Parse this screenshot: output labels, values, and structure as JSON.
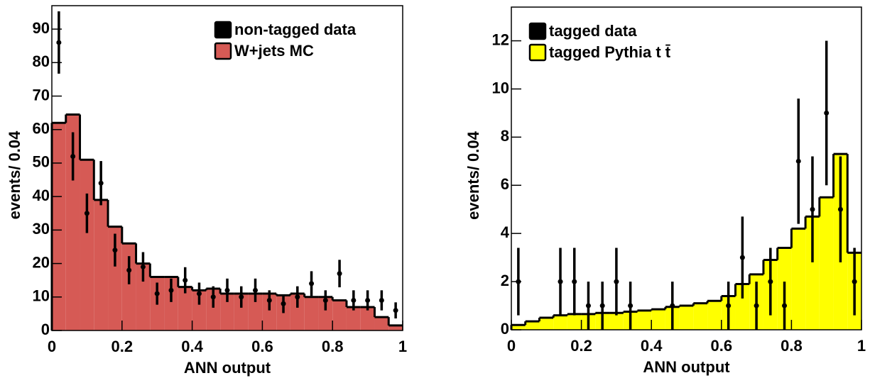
{
  "chart_data": [
    {
      "type": "histogram",
      "xlabel": "ANN output",
      "ylabel": "events/ 0.04",
      "legend": "upper right",
      "xlim": [
        0,
        1
      ],
      "ylim": [
        0,
        97
      ],
      "xticks": [
        0,
        0.2,
        0.4,
        0.6,
        0.8,
        1
      ],
      "yticks": [
        0,
        10,
        20,
        30,
        40,
        50,
        60,
        70,
        80,
        90
      ],
      "bins": [
        0,
        0.04,
        0.08,
        0.12,
        0.16,
        0.2,
        0.24,
        0.28,
        0.32,
        0.36,
        0.4,
        0.44,
        0.48,
        0.52,
        0.56,
        0.6,
        0.64,
        0.68,
        0.72,
        0.76,
        0.8,
        0.84,
        0.88,
        0.92,
        0.96,
        1
      ],
      "series": [
        {
          "name": "non-tagged data",
          "color": "#000000",
          "x": [
            0.02,
            0.06,
            0.1,
            0.14,
            0.18,
            0.22,
            0.26,
            0.3,
            0.34,
            0.38,
            0.42,
            0.46,
            0.5,
            0.54,
            0.58,
            0.62,
            0.66,
            0.7,
            0.74,
            0.78,
            0.82,
            0.86,
            0.9,
            0.94,
            0.98
          ],
          "values": [
            86,
            52,
            35,
            44,
            24,
            18,
            19,
            11,
            12,
            15,
            11,
            10,
            12,
            10,
            12,
            9,
            8,
            10,
            14,
            9,
            17,
            9,
            9,
            9,
            6
          ],
          "errors": [
            9.3,
            7.2,
            5.9,
            6.6,
            4.9,
            4.2,
            4.4,
            3.3,
            3.5,
            3.9,
            3.3,
            3.2,
            3.5,
            3.2,
            3.5,
            3,
            2.8,
            3.2,
            3.7,
            3,
            4.1,
            3,
            3,
            3,
            2.4
          ]
        },
        {
          "name": "W+jets MC",
          "color": "#d65a55",
          "values": [
            62,
            64.5,
            51,
            39,
            31,
            26,
            20,
            16,
            16,
            13,
            12,
            12.5,
            11,
            11,
            11,
            11,
            10.5,
            11,
            10,
            10,
            9,
            7,
            7,
            4,
            1.5
          ]
        }
      ]
    },
    {
      "type": "histogram",
      "xlabel": "ANN output",
      "ylabel": "events/ 0.04",
      "legend": "upper left",
      "xlim": [
        0,
        1
      ],
      "ylim": [
        0,
        13.4
      ],
      "xticks": [
        0,
        0.2,
        0.4,
        0.6,
        0.8,
        1
      ],
      "yticks": [
        0,
        2,
        4,
        6,
        8,
        10,
        12
      ],
      "bins": [
        0,
        0.04,
        0.08,
        0.12,
        0.16,
        0.2,
        0.24,
        0.28,
        0.32,
        0.36,
        0.4,
        0.44,
        0.48,
        0.52,
        0.56,
        0.6,
        0.64,
        0.68,
        0.72,
        0.76,
        0.8,
        0.84,
        0.88,
        0.92,
        0.96,
        1
      ],
      "series": [
        {
          "name": "tagged data",
          "color": "#000000",
          "x": [
            0.02,
            0.14,
            0.18,
            0.22,
            0.26,
            0.3,
            0.34,
            0.46,
            0.62,
            0.66,
            0.7,
            0.74,
            0.78,
            0.82,
            0.86,
            0.9,
            0.94,
            0.98
          ],
          "values": [
            2,
            2,
            2,
            1,
            1,
            2,
            1,
            1,
            1,
            3,
            1,
            2,
            1,
            7,
            5,
            9,
            5,
            2
          ],
          "errors": [
            1.4,
            1.4,
            1.4,
            1,
            1,
            1.4,
            1,
            1,
            1,
            1.7,
            1,
            1.4,
            1,
            2.6,
            2.2,
            3,
            2.2,
            1.4
          ]
        },
        {
          "name": "tagged Pythia t t̄",
          "color": "#ffff00",
          "values": [
            0.2,
            0.35,
            0.5,
            0.6,
            0.65,
            0.65,
            0.7,
            0.7,
            0.75,
            0.8,
            0.85,
            0.95,
            1.0,
            1.1,
            1.2,
            1.4,
            1.9,
            2.3,
            2.9,
            3.4,
            4.2,
            4.7,
            5.5,
            7.3,
            3.2
          ]
        }
      ]
    }
  ]
}
